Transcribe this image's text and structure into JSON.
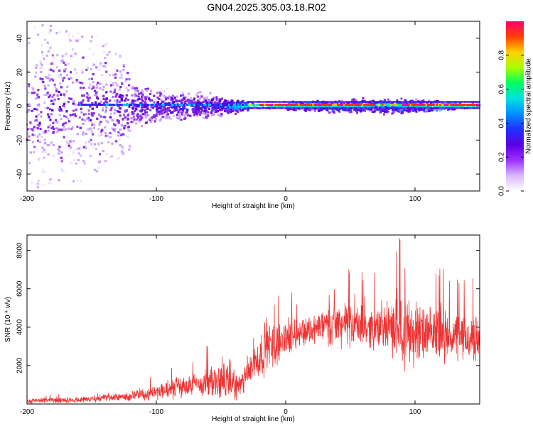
{
  "title": "GN04.2025.305.03.18.R02",
  "chart_data": [
    {
      "type": "heatmap",
      "name": "spectrogram",
      "xlabel": "Height of straight line (km)",
      "ylabel": "Frequency (Hz)",
      "xlim": [
        -200,
        150
      ],
      "ylim": [
        -50,
        50
      ],
      "xticks": [
        -200,
        -100,
        0,
        100
      ],
      "yticks": [
        -40,
        -20,
        0,
        20,
        40
      ],
      "colorbar": {
        "label": "Normalized spectral amplitude",
        "range": [
          0,
          1
        ],
        "ticks": [
          "0.0",
          "0.2",
          "0.4",
          "0.6",
          "0.8"
        ],
        "colors": [
          "#f0e4ff",
          "#c8a2ff",
          "#8a2be2",
          "#5a00e0",
          "#2a33ff",
          "#00bfff",
          "#00e5c8",
          "#00ff40",
          "#bfff00",
          "#ffc000",
          "#ff3000",
          "#ff00a0"
        ]
      },
      "description_points": [
        {
          "x": -200,
          "freq_spread": 50,
          "amplitude": 0.25
        },
        {
          "x": -150,
          "freq_spread": 45,
          "amplitude": 0.25
        },
        {
          "x": -100,
          "freq_spread": 12,
          "amplitude": 0.35
        },
        {
          "x": -50,
          "freq_spread": 8,
          "amplitude": 0.4
        },
        {
          "x": -25,
          "freq_spread": 2,
          "amplitude": 0.95
        },
        {
          "x": 80,
          "freq_spread": 6,
          "amplitude": 0.6
        },
        {
          "x": 150,
          "freq_spread": 2,
          "amplitude": 0.95
        }
      ]
    },
    {
      "type": "line",
      "name": "snr",
      "xlabel": "Height of straight line (km)",
      "ylabel": "SNR (10 * v/v)",
      "xlim": [
        -200,
        150
      ],
      "ylim": [
        0,
        8800
      ],
      "xticks": [
        -200,
        -100,
        0,
        100
      ],
      "yticks": [
        2000,
        4000,
        6000,
        8000
      ],
      "color": "#ee3333",
      "envelope": {
        "x": [
          -200,
          -150,
          -120,
          -100,
          -80,
          -60,
          -45,
          -35,
          -25,
          -15,
          -5,
          5,
          20,
          40,
          60,
          80,
          90,
          95,
          110,
          130,
          150
        ],
        "mean": [
          150,
          250,
          400,
          600,
          900,
          1100,
          1200,
          900,
          2000,
          2900,
          3200,
          3600,
          3900,
          4200,
          4000,
          3900,
          4300,
          3700,
          3600,
          3500,
          3300
        ],
        "amp": [
          150,
          200,
          300,
          500,
          700,
          900,
          1400,
          700,
          1200,
          1600,
          1300,
          1000,
          900,
          1400,
          1200,
          1300,
          2800,
          2200,
          1600,
          1500,
          1500
        ]
      }
    }
  ]
}
